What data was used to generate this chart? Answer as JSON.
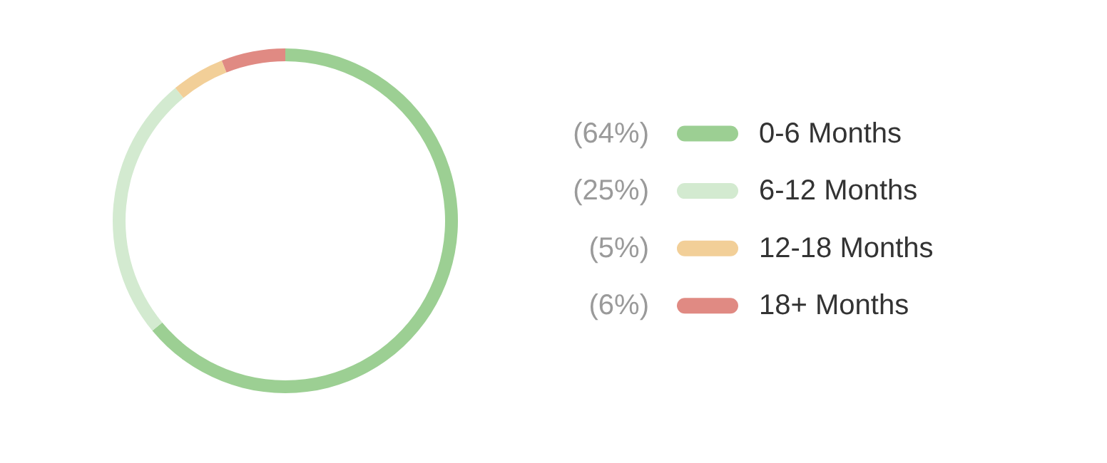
{
  "chart_data": {
    "type": "donut",
    "categories": [
      "0-6 Months",
      "6-12 Months",
      "12-18 Months",
      "18+ Months"
    ],
    "values": [
      64,
      25,
      5,
      6
    ],
    "colors": [
      "#9ccf93",
      "#d3ead0",
      "#f2cf98",
      "#e08a83"
    ],
    "value_labels": [
      "(64%)",
      "(25%)",
      "(5%)",
      "(6%)"
    ],
    "legend": "right"
  }
}
